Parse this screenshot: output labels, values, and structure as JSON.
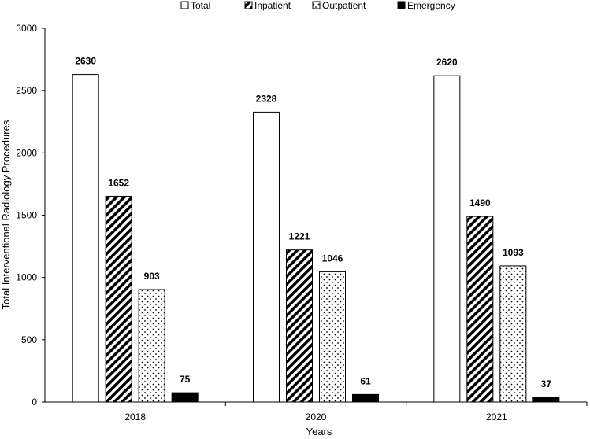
{
  "chart_data": {
    "type": "bar",
    "categories": [
      "2018",
      "2020",
      "2021"
    ],
    "series": [
      {
        "name": "Total",
        "values": [
          2630,
          2328,
          2620
        ],
        "pattern": "solid-white"
      },
      {
        "name": "Inpatient",
        "values": [
          1652,
          1221,
          1490
        ],
        "pattern": "diagonal-stripes"
      },
      {
        "name": "Outpatient",
        "values": [
          903,
          1046,
          1093
        ],
        "pattern": "dots"
      },
      {
        "name": "Emergency",
        "values": [
          75,
          61,
          37
        ],
        "pattern": "solid-black"
      }
    ],
    "title": "",
    "xlabel": "Years",
    "ylabel": "Total Interventional Radiology Procedures",
    "ylim": [
      0,
      3000
    ],
    "yticks": [
      0,
      500,
      1000,
      1500,
      2000,
      2500,
      3000
    ],
    "data_labels": true,
    "grid": false,
    "legend_position": "top"
  },
  "colors": {
    "bar_stroke": "#000000",
    "black_fill": "#000000",
    "white_fill": "#ffffff"
  }
}
